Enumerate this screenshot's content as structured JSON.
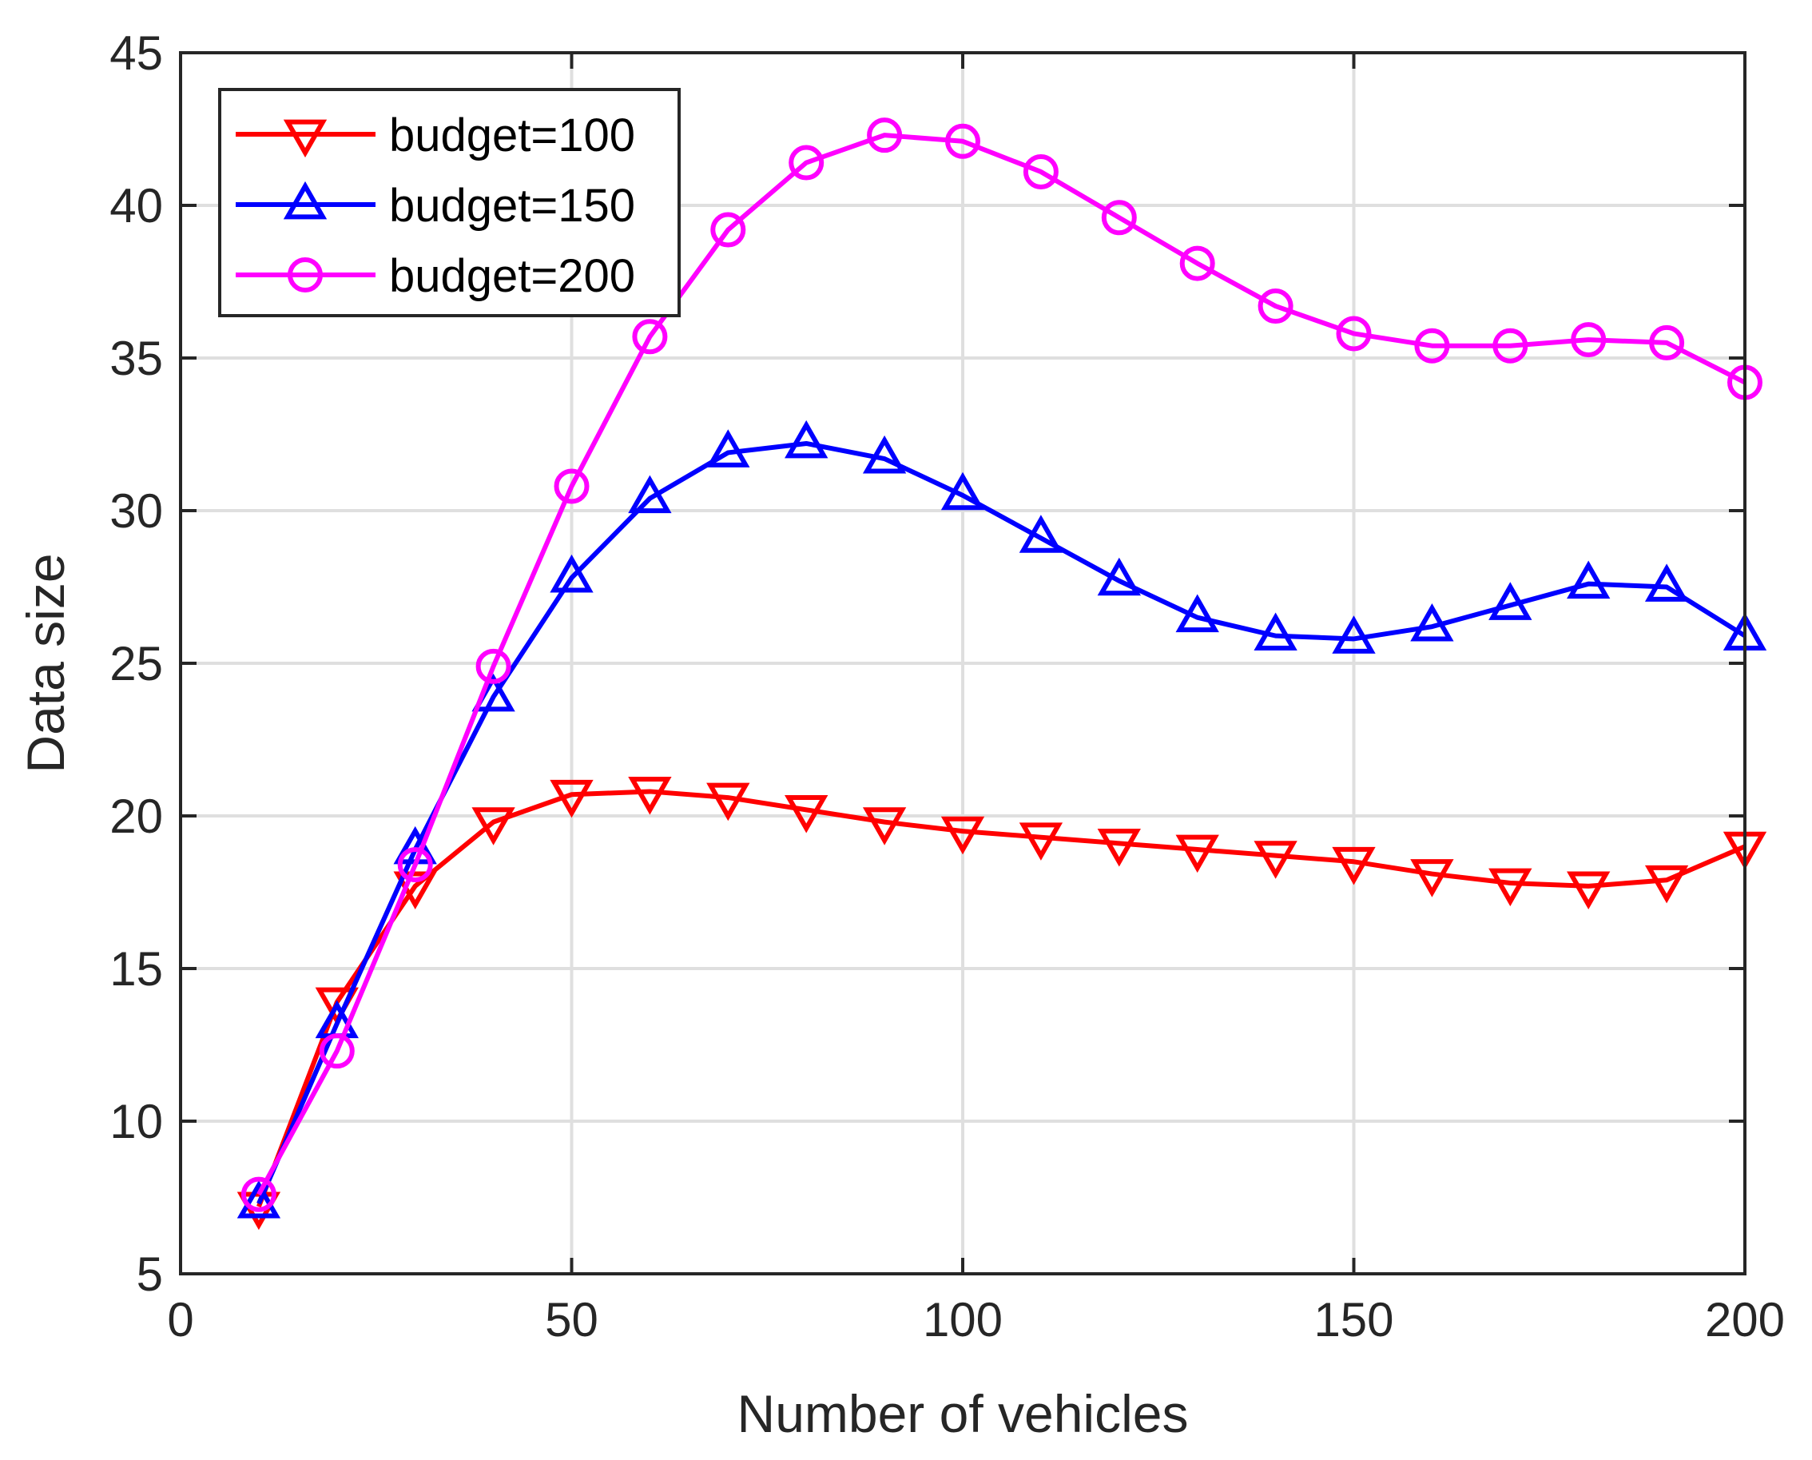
{
  "chart_data": {
    "type": "line",
    "title": "",
    "xlabel": "Number of vehicles",
    "ylabel": "Data size",
    "xlim": [
      0,
      200
    ],
    "ylim": [
      5,
      45
    ],
    "xticks": [
      0,
      50,
      100,
      150,
      200
    ],
    "yticks": [
      5,
      10,
      15,
      20,
      25,
      30,
      35,
      40,
      45
    ],
    "grid": true,
    "legend_position": "top-left",
    "x": [
      10,
      20,
      30,
      40,
      50,
      60,
      70,
      80,
      90,
      100,
      110,
      120,
      130,
      140,
      150,
      160,
      170,
      180,
      190,
      200
    ],
    "series": [
      {
        "name": "budget=100",
        "color": "#ff0000",
        "marker": "triangle-down",
        "values": [
          7.2,
          13.9,
          17.7,
          19.8,
          20.7,
          20.8,
          20.6,
          20.2,
          19.8,
          19.5,
          19.3,
          19.1,
          18.9,
          18.7,
          18.5,
          18.1,
          17.8,
          17.7,
          17.9,
          19.0
        ]
      },
      {
        "name": "budget=150",
        "color": "#0000ff",
        "marker": "triangle-up",
        "values": [
          7.3,
          13.2,
          18.9,
          23.9,
          27.8,
          30.4,
          31.9,
          32.2,
          31.7,
          30.5,
          29.1,
          27.7,
          26.5,
          25.9,
          25.8,
          26.2,
          26.9,
          27.6,
          27.5,
          25.9
        ]
      },
      {
        "name": "budget=200",
        "color": "#ff00ff",
        "marker": "circle",
        "values": [
          7.6,
          12.3,
          18.4,
          24.9,
          30.8,
          35.7,
          39.2,
          41.4,
          42.3,
          42.1,
          41.1,
          39.6,
          38.1,
          36.7,
          35.8,
          35.4,
          35.4,
          35.6,
          35.5,
          34.2
        ]
      }
    ]
  }
}
